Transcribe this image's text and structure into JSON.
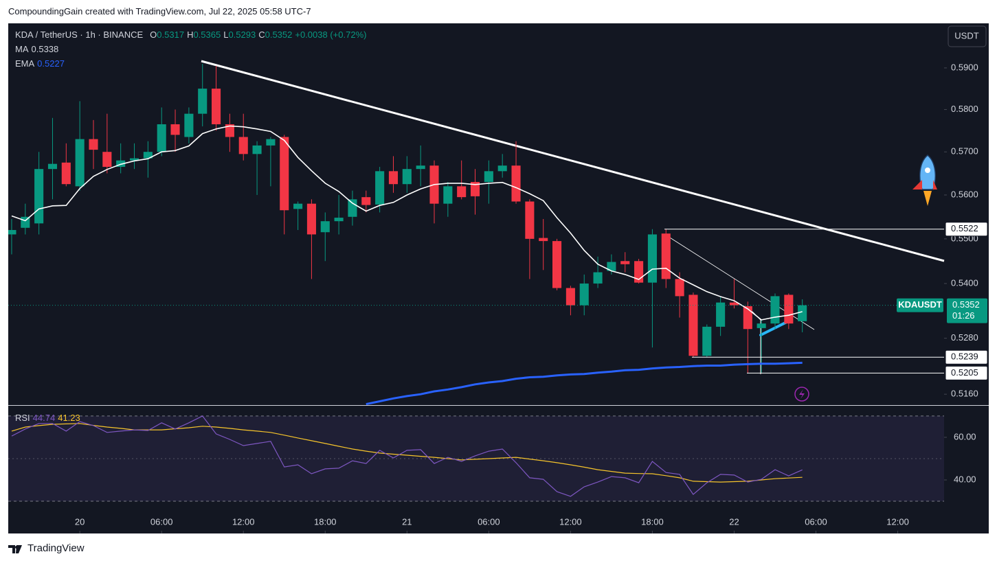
{
  "header": {
    "credit": "CompoundingGain created with TradingView.com, Jul 22, 2025 05:58 UTC-7",
    "brand": "TradingView"
  },
  "chart_data": {
    "type": "candlestick",
    "title": "KDA / TetherUS · 1h · BINANCE",
    "ohlc_labels": [
      "O",
      "H",
      "L",
      "C"
    ],
    "change": "+0.0038 (+0.72%)",
    "currency": "USDT",
    "symbol": "KDAUSDT",
    "countdown": "01:26",
    "up_color": "#089981",
    "down_color": "#f23645",
    "log_scale": true,
    "grid": false,
    "ylim": [
      0.5137,
      0.6009
    ],
    "yticks": [
      {
        "value": 0.516,
        "label": "0.5160"
      },
      {
        "value": 0.528,
        "label": "0.5280"
      },
      {
        "value": 0.54,
        "label": "0.5400"
      },
      {
        "value": 0.55,
        "label": "0.5500"
      },
      {
        "value": 0.56,
        "label": "0.5600"
      },
      {
        "value": 0.57,
        "label": "0.5700"
      },
      {
        "value": 0.58,
        "label": "0.5800"
      },
      {
        "value": 0.59,
        "label": "0.5900"
      }
    ],
    "xlim": [
      -0.25,
      68.4
    ],
    "xticks": [
      {
        "value": 5,
        "label": "20"
      },
      {
        "value": 11,
        "label": "06:00"
      },
      {
        "value": 17,
        "label": "12:00"
      },
      {
        "value": 23,
        "label": "18:00"
      },
      {
        "value": 29,
        "label": "21"
      },
      {
        "value": 35,
        "label": "06:00"
      },
      {
        "value": 41,
        "label": "12:00"
      },
      {
        "value": 47,
        "label": "18:00"
      },
      {
        "value": 53,
        "label": "22"
      },
      {
        "value": 59,
        "label": "06:00"
      },
      {
        "value": 65,
        "label": "12:00"
      }
    ],
    "open": [
      0.551,
      0.5525,
      0.5535,
      0.566,
      0.5675,
      0.562,
      0.573,
      0.57,
      0.5665,
      0.568,
      0.5685,
      0.57,
      0.5765,
      0.5735,
      0.579,
      0.585,
      0.5765,
      0.5735,
      0.5695,
      0.5715,
      0.5735,
      0.5568,
      0.558,
      0.5515,
      0.554,
      0.555,
      0.5595,
      0.5578,
      0.5655,
      0.5625,
      0.566,
      0.5668,
      0.558,
      0.562,
      0.563,
      0.563,
      0.5655,
      0.5668,
      0.5585,
      0.5502,
      0.5495,
      0.539,
      0.5352,
      0.54,
      0.5428,
      0.545,
      0.545,
      0.5402,
      0.5512,
      0.541,
      0.5375,
      0.5242,
      0.5305,
      0.5358,
      0.535,
      0.5302,
      0.5312,
      0.5375,
      0.5317
    ],
    "high": [
      0.5545,
      0.558,
      0.57,
      0.578,
      0.572,
      0.582,
      0.5775,
      0.579,
      0.572,
      0.572,
      0.5725,
      0.5805,
      0.58,
      0.5805,
      0.591,
      0.5905,
      0.579,
      0.579,
      0.5725,
      0.5735,
      0.574,
      0.5585,
      0.559,
      0.556,
      0.56,
      0.561,
      0.561,
      0.5665,
      0.569,
      0.569,
      0.5715,
      0.568,
      0.563,
      0.568,
      0.566,
      0.568,
      0.5695,
      0.5725,
      0.559,
      0.5545,
      0.55,
      0.5395,
      0.542,
      0.546,
      0.5465,
      0.547,
      0.5455,
      0.5522,
      0.5522,
      0.5425,
      0.538,
      0.531,
      0.537,
      0.541,
      0.536,
      0.532,
      0.5378,
      0.5378,
      0.5365
    ],
    "low": [
      0.5465,
      0.551,
      0.551,
      0.559,
      0.562,
      0.561,
      0.566,
      0.565,
      0.565,
      0.566,
      0.564,
      0.569,
      0.57,
      0.572,
      0.576,
      0.575,
      0.57,
      0.568,
      0.56,
      0.562,
      0.551,
      0.552,
      0.541,
      0.545,
      0.551,
      0.553,
      0.556,
      0.556,
      0.5605,
      0.5605,
      0.562,
      0.5535,
      0.555,
      0.559,
      0.5555,
      0.558,
      0.564,
      0.558,
      0.541,
      0.543,
      0.5385,
      0.533,
      0.533,
      0.539,
      0.542,
      0.5425,
      0.54,
      0.526,
      0.539,
      0.5325,
      0.5239,
      0.5239,
      0.5285,
      0.5345,
      0.5205,
      0.5205,
      0.53,
      0.53,
      0.5293
    ],
    "close": [
      0.552,
      0.555,
      0.566,
      0.5672,
      0.5625,
      0.573,
      0.5705,
      0.5665,
      0.568,
      0.5685,
      0.57,
      0.5765,
      0.574,
      0.579,
      0.585,
      0.5765,
      0.5735,
      0.5695,
      0.5715,
      0.573,
      0.5565,
      0.558,
      0.551,
      0.554,
      0.5548,
      0.559,
      0.5577,
      0.5655,
      0.5625,
      0.566,
      0.5668,
      0.558,
      0.562,
      0.5595,
      0.5597,
      0.5655,
      0.5668,
      0.5585,
      0.55,
      0.5495,
      0.539,
      0.5352,
      0.54,
      0.5425,
      0.5448,
      0.5443,
      0.5402,
      0.551,
      0.541,
      0.5372,
      0.5242,
      0.5305,
      0.5358,
      0.5352,
      0.53,
      0.5312,
      0.5372,
      0.5312,
      0.5352
    ],
    "overlays": [
      {
        "name": "MA",
        "color": "#ffffff",
        "values": [
          0.5552,
          0.5541,
          0.5568,
          0.5575,
          0.5576,
          0.5615,
          0.5643,
          0.5659,
          0.5671,
          0.5679,
          0.5684,
          0.57,
          0.5703,
          0.5714,
          0.5743,
          0.5754,
          0.5761,
          0.5759,
          0.5754,
          0.5748,
          0.5727,
          0.5687,
          0.5656,
          0.5627,
          0.5608,
          0.5581,
          0.5563,
          0.5576,
          0.5583,
          0.56,
          0.5614,
          0.5624,
          0.5627,
          0.5627,
          0.5624,
          0.5627,
          0.5629,
          0.5617,
          0.5603,
          0.5587,
          0.5548,
          0.5513,
          0.5474,
          0.5443,
          0.5428,
          0.542,
          0.5409,
          0.5432,
          0.5434,
          0.5412,
          0.5397,
          0.5382,
          0.5371,
          0.5362,
          0.5344,
          0.532,
          0.5326,
          0.533,
          0.5338
        ]
      },
      {
        "name": "EMA",
        "color": "#2962ff",
        "values": [
          null,
          null,
          null,
          null,
          null,
          null,
          null,
          null,
          null,
          null,
          null,
          null,
          null,
          null,
          null,
          null,
          null,
          null,
          null,
          null,
          null,
          null,
          null,
          null,
          null,
          null,
          0.5139,
          0.5145,
          0.5151,
          0.5156,
          0.516,
          0.5166,
          0.517,
          0.5175,
          0.5181,
          0.5185,
          0.5188,
          0.5193,
          0.5196,
          0.5197,
          0.52,
          0.5202,
          0.5203,
          0.5206,
          0.5208,
          0.5211,
          0.5212,
          0.5215,
          0.5217,
          0.5218,
          0.522,
          0.5221,
          0.5221,
          0.5223,
          0.5224,
          0.5225,
          0.5225,
          0.5226,
          0.5227
        ]
      }
    ],
    "levels": [
      0.5522,
      0.5239,
      0.5205
    ],
    "rsi": {
      "name": "RSI",
      "ylim": [
        15.2,
        74.8
      ],
      "yticks": [
        {
          "value": 60,
          "label": "60.00"
        },
        {
          "value": 40,
          "label": "40.00"
        }
      ],
      "band": [
        30,
        70
      ],
      "midline": 50,
      "series": [
        {
          "color": "#7e57c2",
          "values": [
            60.6,
            63.9,
            66.5,
            66.5,
            62.9,
            67.4,
            65.5,
            62.3,
            62.9,
            63.5,
            63.2,
            66.8,
            63.9,
            66.8,
            70.0,
            61.6,
            59.0,
            56.1,
            57.1,
            58.1,
            46.1,
            47.1,
            42.9,
            45.2,
            45.5,
            49.0,
            47.7,
            53.9,
            50.3,
            53.9,
            54.2,
            47.7,
            50.6,
            48.7,
            51.3,
            53.5,
            54.5,
            48.1,
            41.0,
            40.3,
            34.5,
            32.3,
            36.8,
            39.0,
            41.6,
            41.0,
            38.7,
            48.7,
            43.5,
            42.6,
            33.2,
            38.7,
            42.6,
            42.3,
            39.0,
            40.3,
            44.8,
            41.9,
            44.74
          ]
        },
        {
          "color": "#f7c52b",
          "values": [
            62.9,
            64.8,
            65.5,
            66.1,
            66.3,
            66.5,
            65.6,
            64.8,
            64.2,
            63.5,
            63.5,
            63.5,
            64.0,
            64.5,
            65.2,
            64.8,
            64.2,
            63.5,
            62.9,
            62.3,
            61.0,
            59.7,
            58.4,
            57.1,
            55.8,
            54.5,
            53.5,
            52.6,
            52.1,
            51.6,
            51.1,
            50.6,
            50.0,
            49.4,
            49.7,
            50.0,
            50.3,
            50.6,
            49.8,
            49.0,
            48.1,
            47.1,
            46.0,
            44.8,
            44.0,
            43.2,
            43.0,
            42.9,
            42.0,
            41.0,
            39.4,
            39.2,
            39.0,
            39.2,
            39.4,
            40.0,
            40.6,
            40.9,
            41.23
          ]
        }
      ]
    }
  }
}
